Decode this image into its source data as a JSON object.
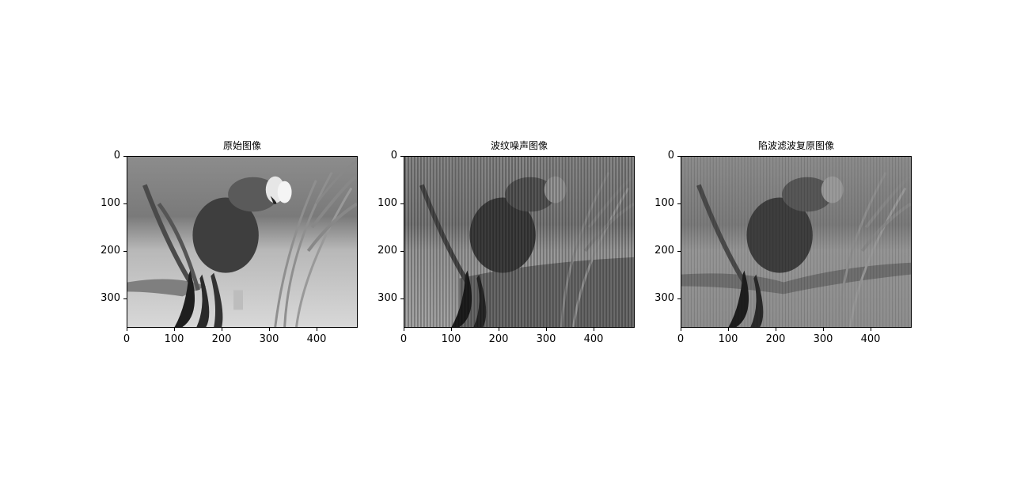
{
  "figure": {
    "panels": [
      {
        "title": "原始图像",
        "variant": "original"
      },
      {
        "title": "波纹噪声图像",
        "variant": "ripple-noise"
      },
      {
        "title": "陷波滤波复原图像",
        "variant": "notch-restored"
      }
    ],
    "y_ticks": [
      "0",
      "100",
      "200",
      "300"
    ],
    "x_ticks": [
      "0",
      "100",
      "200",
      "300",
      "400"
    ],
    "image_extent": {
      "x": [
        0,
        487
      ],
      "y": [
        0,
        360
      ]
    },
    "colormap": "gray"
  }
}
